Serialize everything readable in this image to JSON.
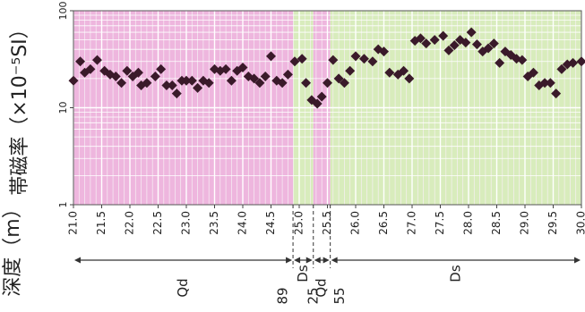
{
  "chart_data": {
    "type": "scatter",
    "ylabel": "帯磁率（×10⁻⁵SI）",
    "xlabel": "深度（m）",
    "yscale": "log",
    "ylim": [
      1,
      100
    ],
    "xlim": [
      21.0,
      30.0
    ],
    "ytick_labels": [
      "1",
      "10",
      "100"
    ],
    "xtick_labels": [
      "21.0",
      "21.5",
      "22.0",
      "22.5",
      "23.0",
      "23.5",
      "24.0",
      "24.5",
      "25.0",
      "25.5",
      "26.0",
      "26.5",
      "27.0",
      "27.5",
      "28.0",
      "28.5",
      "29.0",
      "29.5",
      "30.0"
    ],
    "grid": true,
    "marker": "diamond",
    "marker_color": "#3a1a2a",
    "series": [
      {
        "points": [
          [
            21.0,
            19
          ],
          [
            21.12,
            30
          ],
          [
            21.2,
            23
          ],
          [
            21.3,
            25
          ],
          [
            21.42,
            31
          ],
          [
            21.55,
            24
          ],
          [
            21.65,
            22
          ],
          [
            21.75,
            21
          ],
          [
            21.85,
            18
          ],
          [
            21.95,
            24
          ],
          [
            22.05,
            21
          ],
          [
            22.15,
            23
          ],
          [
            22.2,
            17
          ],
          [
            22.3,
            18
          ],
          [
            22.45,
            21
          ],
          [
            22.55,
            25
          ],
          [
            22.65,
            17
          ],
          [
            22.75,
            17
          ],
          [
            22.83,
            14
          ],
          [
            22.92,
            19
          ],
          [
            23.0,
            19
          ],
          [
            23.1,
            19
          ],
          [
            23.2,
            16
          ],
          [
            23.3,
            19
          ],
          [
            23.4,
            18
          ],
          [
            23.5,
            25
          ],
          [
            23.6,
            24
          ],
          [
            23.7,
            25
          ],
          [
            23.8,
            19
          ],
          [
            23.9,
            24
          ],
          [
            24.0,
            26
          ],
          [
            24.1,
            21
          ],
          [
            24.2,
            20
          ],
          [
            24.3,
            18
          ],
          [
            24.4,
            21
          ],
          [
            24.5,
            34
          ],
          [
            24.6,
            19
          ],
          [
            24.7,
            18
          ],
          [
            24.8,
            22
          ],
          [
            24.92,
            30
          ],
          [
            25.05,
            32
          ],
          [
            25.12,
            18
          ],
          [
            25.22,
            12
          ],
          [
            25.32,
            11
          ],
          [
            25.4,
            13
          ],
          [
            25.5,
            18
          ],
          [
            25.6,
            31
          ],
          [
            25.7,
            20
          ],
          [
            25.8,
            18
          ],
          [
            25.9,
            24
          ],
          [
            26.0,
            34
          ],
          [
            26.15,
            32
          ],
          [
            26.3,
            30
          ],
          [
            26.4,
            40
          ],
          [
            26.5,
            38
          ],
          [
            26.6,
            23
          ],
          [
            26.75,
            22
          ],
          [
            26.85,
            24
          ],
          [
            26.95,
            20
          ],
          [
            27.05,
            49
          ],
          [
            27.15,
            52
          ],
          [
            27.25,
            46
          ],
          [
            27.4,
            50
          ],
          [
            27.55,
            55
          ],
          [
            27.65,
            39
          ],
          [
            27.75,
            44
          ],
          [
            27.85,
            50
          ],
          [
            27.95,
            47
          ],
          [
            28.05,
            60
          ],
          [
            28.15,
            45
          ],
          [
            28.25,
            38
          ],
          [
            28.35,
            41
          ],
          [
            28.45,
            46
          ],
          [
            28.55,
            29
          ],
          [
            28.65,
            38
          ],
          [
            28.75,
            35
          ],
          [
            28.85,
            32
          ],
          [
            28.95,
            31
          ],
          [
            29.05,
            21
          ],
          [
            29.15,
            23
          ],
          [
            29.25,
            17
          ],
          [
            29.35,
            18
          ],
          [
            29.45,
            18
          ],
          [
            29.55,
            14
          ],
          [
            29.65,
            25
          ],
          [
            29.75,
            28
          ],
          [
            29.85,
            29
          ],
          [
            30.0,
            30
          ]
        ]
      }
    ],
    "zones": [
      {
        "name": "Qd",
        "from": 21.0,
        "to": 24.89,
        "color": "#eeb6de"
      },
      {
        "name": "Ds",
        "from": 24.89,
        "to": 25.25,
        "color": "#d8ecbc"
      },
      {
        "name": "Qd",
        "from": 25.25,
        "to": 25.55,
        "color": "#eeb6de"
      },
      {
        "name": "Ds",
        "from": 25.55,
        "to": 30.0,
        "color": "#d8ecbc"
      }
    ],
    "boundary_labels": [
      "89",
      "25",
      "55"
    ]
  }
}
